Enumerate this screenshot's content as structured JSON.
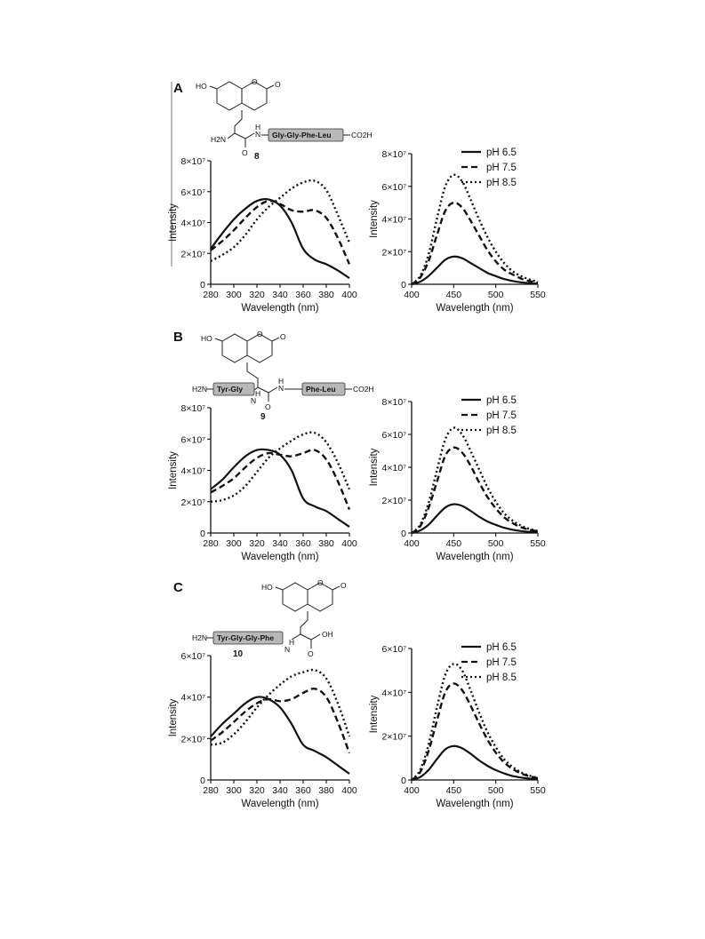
{
  "panels": [
    {
      "letter": "A",
      "compound_number": "8",
      "structure": {
        "ho": "HO",
        "o_ring": "O",
        "o_carbonyl": "O",
        "amine": "H2N",
        "nh": "H",
        "n": "N",
        "o_amide": "O",
        "peptide": "Gly-Gly-Phe-Leu",
        "cooh": "CO2H"
      }
    },
    {
      "letter": "B",
      "compound_number": "9",
      "structure": {
        "ho": "HO",
        "o_ring": "O",
        "o_carbonyl": "O",
        "amine": "H2N",
        "peptide_left": "Tyr-Gly",
        "nh_left": "H",
        "n_left": "N",
        "nh_right": "H",
        "n_right": "N",
        "o_amide": "O",
        "peptide_right": "Phe-Leu",
        "cooh": "CO2H"
      }
    },
    {
      "letter": "C",
      "compound_number": "10",
      "structure": {
        "ho": "HO",
        "o_ring": "O",
        "o_carbonyl": "O",
        "amine": "H2N",
        "peptide": "Tyr-Gly-Gly-Phe",
        "nh": "H",
        "n": "N",
        "oh": "OH",
        "o_acid": "O"
      }
    }
  ],
  "chart_data": [
    {
      "id": "A-excitation",
      "type": "line",
      "xlabel": "Wavelength (nm)",
      "ylabel": "Intensity",
      "xlim": [
        280,
        400
      ],
      "ylim": [
        0,
        80000000
      ],
      "xticks": [
        "280",
        "300",
        "320",
        "340",
        "360",
        "380",
        "400"
      ],
      "yticks": [
        "0",
        "2×10⁷",
        "4×10⁷",
        "6×10⁷",
        "8×10⁷"
      ],
      "series": [
        {
          "name": "",
          "style": "solid",
          "x": [
            280,
            290,
            300,
            310,
            320,
            330,
            340,
            350,
            360,
            370,
            380,
            390,
            400
          ],
          "y": [
            23000000,
            33000000,
            42000000,
            49000000,
            54000000,
            55000000,
            51000000,
            40000000,
            23000000,
            16000000,
            13000000,
            9000000,
            4000000
          ]
        },
        {
          "name": "",
          "style": "dashed",
          "x": [
            280,
            290,
            300,
            310,
            320,
            330,
            340,
            350,
            360,
            370,
            380,
            390,
            400
          ],
          "y": [
            22000000,
            28000000,
            35000000,
            43000000,
            50000000,
            54000000,
            52000000,
            48000000,
            47000000,
            48000000,
            43000000,
            30000000,
            13000000
          ]
        },
        {
          "name": "",
          "style": "dotted",
          "x": [
            280,
            290,
            300,
            310,
            320,
            330,
            340,
            350,
            360,
            370,
            380,
            390,
            400
          ],
          "y": [
            15000000,
            19000000,
            24000000,
            32000000,
            42000000,
            50000000,
            56000000,
            62000000,
            66000000,
            67000000,
            61000000,
            45000000,
            27000000
          ]
        }
      ]
    },
    {
      "id": "A-emission",
      "type": "line",
      "xlabel": "Wavelength (nm)",
      "ylabel": "Intensity",
      "xlim": [
        400,
        550
      ],
      "ylim": [
        0,
        80000000
      ],
      "xticks": [
        "400",
        "450",
        "500",
        "550"
      ],
      "yticks": [
        "0",
        "2×10⁷",
        "4×10⁷",
        "6×10⁷",
        "8×10⁷"
      ],
      "legend": [
        "pH 6.5",
        "pH 7.5",
        "pH 8.5"
      ],
      "legend_position": "top-right",
      "series": [
        {
          "name": "pH 6.5",
          "style": "solid",
          "x": [
            400,
            410,
            420,
            430,
            440,
            450,
            460,
            470,
            480,
            490,
            500,
            510,
            520,
            530,
            540,
            550
          ],
          "y": [
            0,
            1500000,
            5000000,
            10000000,
            15000000,
            17000000,
            16000000,
            13000000,
            10000000,
            7000000,
            5000000,
            3200000,
            2000000,
            1200000,
            700000,
            300000
          ]
        },
        {
          "name": "pH 7.5",
          "style": "dashed",
          "x": [
            400,
            410,
            420,
            430,
            440,
            450,
            460,
            470,
            480,
            490,
            500,
            510,
            520,
            530,
            540,
            550
          ],
          "y": [
            0,
            4000000,
            14000000,
            30000000,
            45000000,
            50000000,
            47000000,
            39000000,
            30000000,
            21000000,
            14000000,
            9000000,
            6000000,
            3500000,
            2000000,
            1000000
          ]
        },
        {
          "name": "pH 8.5",
          "style": "dotted",
          "x": [
            400,
            410,
            420,
            430,
            440,
            450,
            460,
            470,
            480,
            490,
            500,
            510,
            520,
            530,
            540,
            550
          ],
          "y": [
            0,
            5000000,
            18000000,
            40000000,
            60000000,
            67000000,
            63000000,
            52000000,
            40000000,
            29000000,
            20000000,
            13000000,
            8000000,
            5000000,
            3000000,
            1500000
          ]
        }
      ]
    },
    {
      "id": "B-excitation",
      "type": "line",
      "xlabel": "Wavelength (nm)",
      "ylabel": "Intensity",
      "xlim": [
        280,
        400
      ],
      "ylim": [
        0,
        80000000
      ],
      "xticks": [
        "280",
        "300",
        "320",
        "340",
        "360",
        "380",
        "400"
      ],
      "yticks": [
        "0",
        "2×10⁷",
        "4×10⁷",
        "6×10⁷",
        "8×10⁷"
      ],
      "series": [
        {
          "name": "",
          "style": "solid",
          "x": [
            280,
            290,
            300,
            310,
            320,
            330,
            340,
            350,
            360,
            370,
            380,
            390,
            400
          ],
          "y": [
            28000000,
            34000000,
            42000000,
            49000000,
            53000000,
            53000000,
            50000000,
            40000000,
            22000000,
            17000000,
            14000000,
            9000000,
            4000000
          ]
        },
        {
          "name": "",
          "style": "dashed",
          "x": [
            280,
            290,
            300,
            310,
            320,
            330,
            340,
            350,
            360,
            370,
            380,
            390,
            400
          ],
          "y": [
            26000000,
            30000000,
            35000000,
            42000000,
            48000000,
            51000000,
            50000000,
            49000000,
            51000000,
            53000000,
            47000000,
            33000000,
            15000000
          ]
        },
        {
          "name": "",
          "style": "dotted",
          "x": [
            280,
            290,
            300,
            310,
            320,
            330,
            340,
            350,
            360,
            370,
            380,
            390,
            400
          ],
          "y": [
            20000000,
            21000000,
            24000000,
            30000000,
            39000000,
            48000000,
            54000000,
            59000000,
            63000000,
            64000000,
            58000000,
            45000000,
            28000000
          ]
        }
      ]
    },
    {
      "id": "B-emission",
      "type": "line",
      "xlabel": "Wavelength (nm)",
      "ylabel": "Intensity",
      "xlim": [
        400,
        550
      ],
      "ylim": [
        0,
        80000000
      ],
      "xticks": [
        "400",
        "450",
        "500",
        "550"
      ],
      "yticks": [
        "0",
        "2×10⁷",
        "4×10⁷",
        "6×10⁷",
        "8×10⁷"
      ],
      "legend": [
        "pH 6.5",
        "pH 7.5",
        "pH 8.5"
      ],
      "legend_position": "top-right",
      "series": [
        {
          "name": "pH 6.5",
          "style": "solid",
          "x": [
            400,
            410,
            420,
            430,
            440,
            450,
            460,
            470,
            480,
            490,
            500,
            510,
            520,
            530,
            540,
            550
          ],
          "y": [
            0,
            1500000,
            5000000,
            10500000,
            15500000,
            17500000,
            16500000,
            13500000,
            10000000,
            7000000,
            5000000,
            3200000,
            2000000,
            1200000,
            700000,
            300000
          ]
        },
        {
          "name": "pH 7.5",
          "style": "dashed",
          "x": [
            400,
            410,
            420,
            430,
            440,
            450,
            460,
            470,
            480,
            490,
            500,
            510,
            520,
            530,
            540,
            550
          ],
          "y": [
            0,
            4000000,
            15000000,
            31000000,
            47000000,
            52000000,
            49000000,
            41000000,
            31000000,
            22000000,
            15000000,
            9500000,
            6000000,
            3500000,
            2000000,
            1000000
          ]
        },
        {
          "name": "pH 8.5",
          "style": "dotted",
          "x": [
            400,
            410,
            420,
            430,
            440,
            450,
            460,
            470,
            480,
            490,
            500,
            510,
            520,
            530,
            540,
            550
          ],
          "y": [
            0,
            5000000,
            18000000,
            38000000,
            57000000,
            64000000,
            60000000,
            50000000,
            39000000,
            28000000,
            19000000,
            12000000,
            7500000,
            4500000,
            2500000,
            1200000
          ]
        }
      ]
    },
    {
      "id": "C-excitation",
      "type": "line",
      "xlabel": "Wavelength (nm)",
      "ylabel": "Intensity",
      "xlim": [
        280,
        400
      ],
      "ylim": [
        0,
        60000000
      ],
      "xticks": [
        "280",
        "300",
        "320",
        "340",
        "360",
        "380",
        "400"
      ],
      "yticks": [
        "0",
        "2×10⁷",
        "4×10⁷",
        "6×10⁷"
      ],
      "series": [
        {
          "name": "",
          "style": "solid",
          "x": [
            280,
            290,
            300,
            310,
            320,
            330,
            340,
            350,
            360,
            370,
            380,
            390,
            400
          ],
          "y": [
            21000000,
            27000000,
            32000000,
            37000000,
            40000000,
            39000000,
            35000000,
            27000000,
            17000000,
            14000000,
            11000000,
            7000000,
            3000000
          ]
        },
        {
          "name": "",
          "style": "dashed",
          "x": [
            280,
            290,
            300,
            310,
            320,
            330,
            340,
            350,
            360,
            370,
            380,
            390,
            400
          ],
          "y": [
            19000000,
            23000000,
            28000000,
            33000000,
            37000000,
            39000000,
            38000000,
            39000000,
            42000000,
            44000000,
            40000000,
            28000000,
            13000000
          ]
        },
        {
          "name": "",
          "style": "dotted",
          "x": [
            280,
            290,
            300,
            310,
            320,
            330,
            340,
            350,
            360,
            370,
            380,
            390,
            400
          ],
          "y": [
            17000000,
            18000000,
            22000000,
            28000000,
            35000000,
            41000000,
            46000000,
            50000000,
            52000000,
            53000000,
            49000000,
            37000000,
            21000000
          ]
        }
      ]
    },
    {
      "id": "C-emission",
      "type": "line",
      "xlabel": "Wavelength (nm)",
      "ylabel": "Intensity",
      "xlim": [
        400,
        550
      ],
      "ylim": [
        0,
        60000000
      ],
      "xticks": [
        "400",
        "450",
        "500",
        "550"
      ],
      "yticks": [
        "0",
        "2×10⁷",
        "4×10⁷",
        "6×10⁷"
      ],
      "legend": [
        "pH 6.5",
        "pH 7.5",
        "pH 8.5"
      ],
      "legend_position": "top-right",
      "series": [
        {
          "name": "pH 6.5",
          "style": "solid",
          "x": [
            400,
            410,
            420,
            430,
            440,
            450,
            460,
            470,
            480,
            490,
            500,
            510,
            520,
            530,
            540,
            550
          ],
          "y": [
            0,
            1300000,
            4500000,
            9500000,
            14000000,
            15500000,
            14500000,
            12000000,
            9000000,
            6500000,
            4500000,
            3000000,
            1800000,
            1100000,
            600000,
            300000
          ]
        },
        {
          "name": "pH 7.5",
          "style": "dashed",
          "x": [
            400,
            410,
            420,
            430,
            440,
            450,
            460,
            470,
            480,
            490,
            500,
            510,
            520,
            530,
            540,
            550
          ],
          "y": [
            0,
            3500000,
            13000000,
            27000000,
            40000000,
            44000000,
            41000000,
            34000000,
            26000000,
            18500000,
            12500000,
            8000000,
            5000000,
            3000000,
            1700000,
            800000
          ]
        },
        {
          "name": "pH 8.5",
          "style": "dotted",
          "x": [
            400,
            410,
            420,
            430,
            440,
            450,
            460,
            470,
            480,
            490,
            500,
            510,
            520,
            530,
            540,
            550
          ],
          "y": [
            0,
            4500000,
            16000000,
            33000000,
            48000000,
            53000000,
            50000000,
            41000000,
            31000000,
            22000000,
            15000000,
            9500000,
            6000000,
            3500000,
            2000000,
            900000
          ]
        }
      ]
    }
  ]
}
